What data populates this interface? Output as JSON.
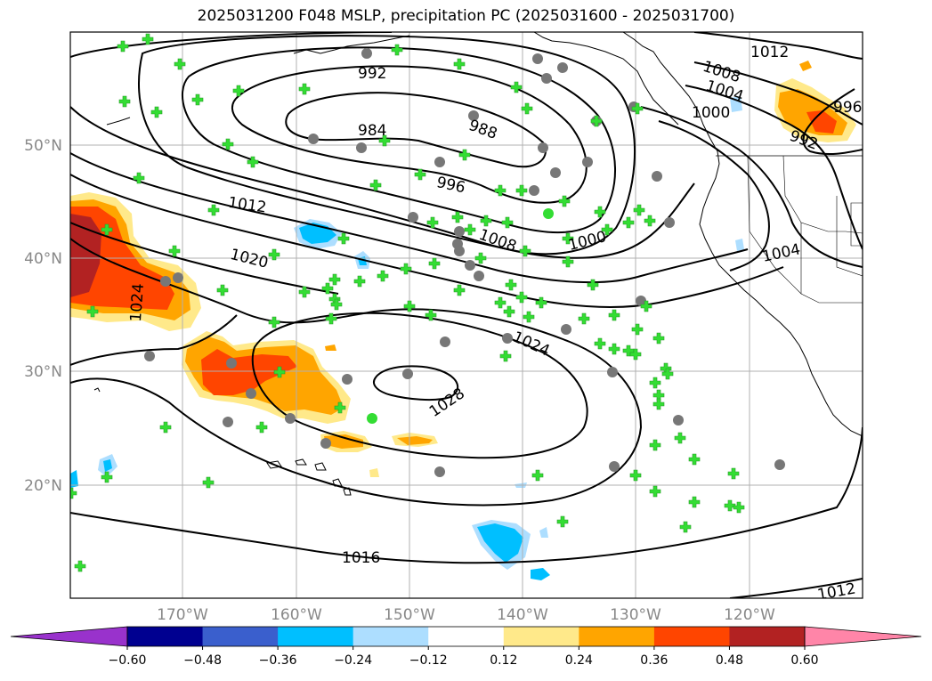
{
  "title": "2025031200 F048 MSLP, precipitation PC (2025031600 - 2025031700)",
  "lat_labels": [
    "20°N",
    "30°N",
    "40°N",
    "50°N"
  ],
  "lon_labels": [
    "170°W",
    "160°W",
    "150°W",
    "140°W",
    "130°W",
    "120°W"
  ],
  "isobar_labels": [
    "992",
    "984",
    "988",
    "996",
    "1012",
    "1008",
    "1000",
    "1004",
    "1012",
    "1008",
    "1004",
    "1000",
    "996",
    "992",
    "1020",
    "1024",
    "1024",
    "1028",
    "1016",
    "1012"
  ],
  "colorbar": {
    "ticks": [
      "−0.60",
      "−0.48",
      "−0.36",
      "−0.24",
      "−0.12",
      "0.12",
      "0.24",
      "0.36",
      "0.48",
      "0.60"
    ],
    "colors": [
      "#9932CC",
      "#000090",
      "#3A5FCD",
      "#00BFFF",
      "#ADDEFF",
      "#FFFFFF",
      "#FFE98A",
      "#FFA500",
      "#FF4500",
      "#B22222",
      "#FF85A8"
    ]
  },
  "colors": {
    "station_cross": "#33dd33",
    "station_circle": "#777777",
    "grid": "#b0b0b0"
  }
}
